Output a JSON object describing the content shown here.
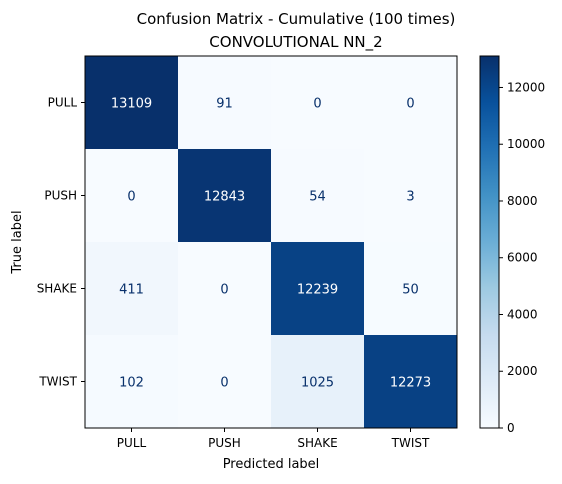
{
  "chart_data": {
    "type": "heatmap",
    "title": "Confusion Matrix - Cumulative (100 times)",
    "subtitle": "CONVOLUTIONAL NN_2",
    "xlabel": "Predicted label",
    "ylabel": "True label",
    "x_categories": [
      "PULL",
      "PUSH",
      "SHAKE",
      "TWIST"
    ],
    "y_categories": [
      "PULL",
      "PUSH",
      "SHAKE",
      "TWIST"
    ],
    "matrix": [
      [
        13109,
        91,
        0,
        0
      ],
      [
        0,
        12843,
        54,
        3
      ],
      [
        411,
        0,
        12239,
        50
      ],
      [
        102,
        0,
        1025,
        12273
      ]
    ],
    "colormap": "Blues",
    "colorbar": {
      "min": 0,
      "max": 13109,
      "ticks": [
        0,
        2000,
        4000,
        6000,
        8000,
        10000,
        12000
      ]
    },
    "text_color_light": "#ffffff",
    "text_color_dark": "#08306b"
  }
}
